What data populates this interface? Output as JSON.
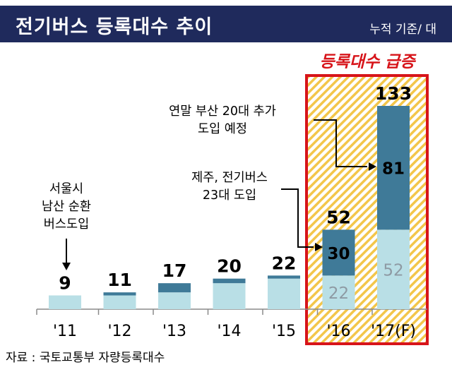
{
  "header": {
    "title": "전기버스 등록대수 추이",
    "unit": "누적 기준/ 대"
  },
  "highlight_label": "등록대수 급증",
  "source": "자료 : 국토교통부 자량등록대수",
  "annotations": {
    "seoul": [
      "서울시",
      "남산 순환",
      "버스도입"
    ],
    "jeju": [
      "제주, 전기버스",
      "23대 도입"
    ],
    "busan": [
      "연말 부산 20대 추가",
      "도입 예정"
    ]
  },
  "colors": {
    "title_bar": "#1f2a5c",
    "base_segment": "#b9dfe6",
    "added_segment": "#3f7a98",
    "highlight": "#d7141a",
    "hatch": "#f3c64a"
  },
  "chart_data": {
    "type": "bar",
    "stacked": true,
    "categories": [
      "'11",
      "'12",
      "'13",
      "'14",
      "'15",
      "'16",
      "'17(F)"
    ],
    "totals": [
      9,
      11,
      17,
      20,
      22,
      52,
      133
    ],
    "series": [
      {
        "values": [
          9,
          9,
          11,
          17,
          20,
          22,
          52
        ]
      },
      {
        "values": [
          0,
          2,
          6,
          3,
          2,
          30,
          81
        ]
      }
    ],
    "segment_labels": [
      {
        "category": "'16",
        "base": "22",
        "added": "30"
      },
      {
        "category": "'17(F)",
        "base": "52",
        "added": "81"
      }
    ],
    "highlighted_categories": [
      "'16",
      "'17(F)"
    ],
    "ylim": [
      0,
      133
    ]
  }
}
